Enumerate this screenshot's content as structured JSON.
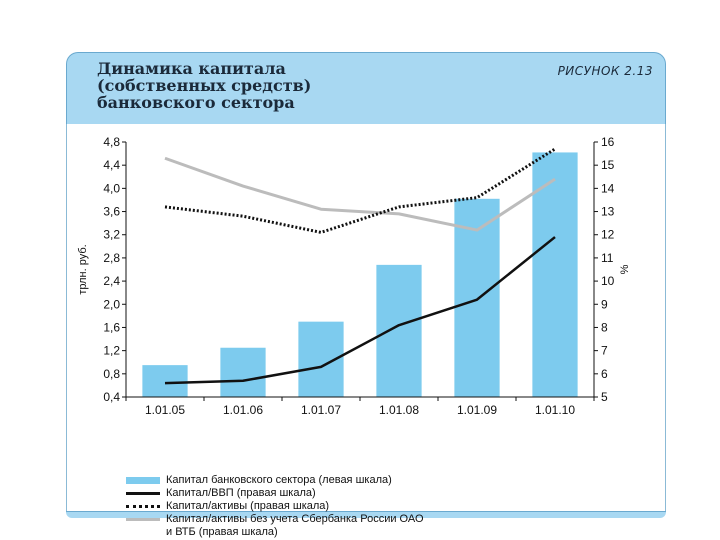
{
  "header": {
    "title": "Динамика капитала\n(собственных средств)\nбанковского сектора",
    "figure_label": "РИСУНОК 2.13"
  },
  "chart_data": {
    "type": "bar",
    "categories": [
      "1.01.05",
      "1.01.06",
      "1.01.07",
      "1.01.08",
      "1.01.09",
      "1.01.10"
    ],
    "ylabel_left": "трлн. руб.",
    "ylabel_right": "%",
    "ylim_left": [
      0.4,
      4.8
    ],
    "ylim_right": [
      5,
      16
    ],
    "yticks_left": [
      "0,4",
      "0,8",
      "1,2",
      "1,6",
      "2,0",
      "2,4",
      "2,8",
      "3,2",
      "3,6",
      "4,0",
      "4,4",
      "4,8"
    ],
    "yticks_right": [
      "5",
      "6",
      "7",
      "8",
      "9",
      "10",
      "11",
      "12",
      "13",
      "14",
      "15",
      "16"
    ],
    "series": [
      {
        "name": "Капитал банковского сектора (левая шкала)",
        "kind": "bar",
        "axis": "left",
        "color": "#7dcbee",
        "values": [
          0.95,
          1.25,
          1.7,
          2.68,
          3.82,
          4.62
        ]
      },
      {
        "name": "Капитал/ВВП (правая шкала)",
        "kind": "line",
        "style": "solid",
        "axis": "right",
        "color": "#111111",
        "values": [
          5.6,
          5.7,
          6.3,
          8.1,
          9.2,
          11.9
        ]
      },
      {
        "name": "Капитал/активы (правая шкала)",
        "kind": "line",
        "style": "dotted",
        "axis": "right",
        "color": "#111111",
        "values": [
          13.2,
          12.8,
          12.1,
          13.2,
          13.6,
          15.7
        ]
      },
      {
        "name": "Капитал/активы без учета Сбербанка России ОАО\nи ВТБ (правая шкала)",
        "kind": "line",
        "style": "solid",
        "axis": "right",
        "color": "#bcbcbc",
        "values": [
          15.3,
          14.1,
          13.1,
          12.9,
          12.2,
          14.4
        ]
      }
    ]
  }
}
